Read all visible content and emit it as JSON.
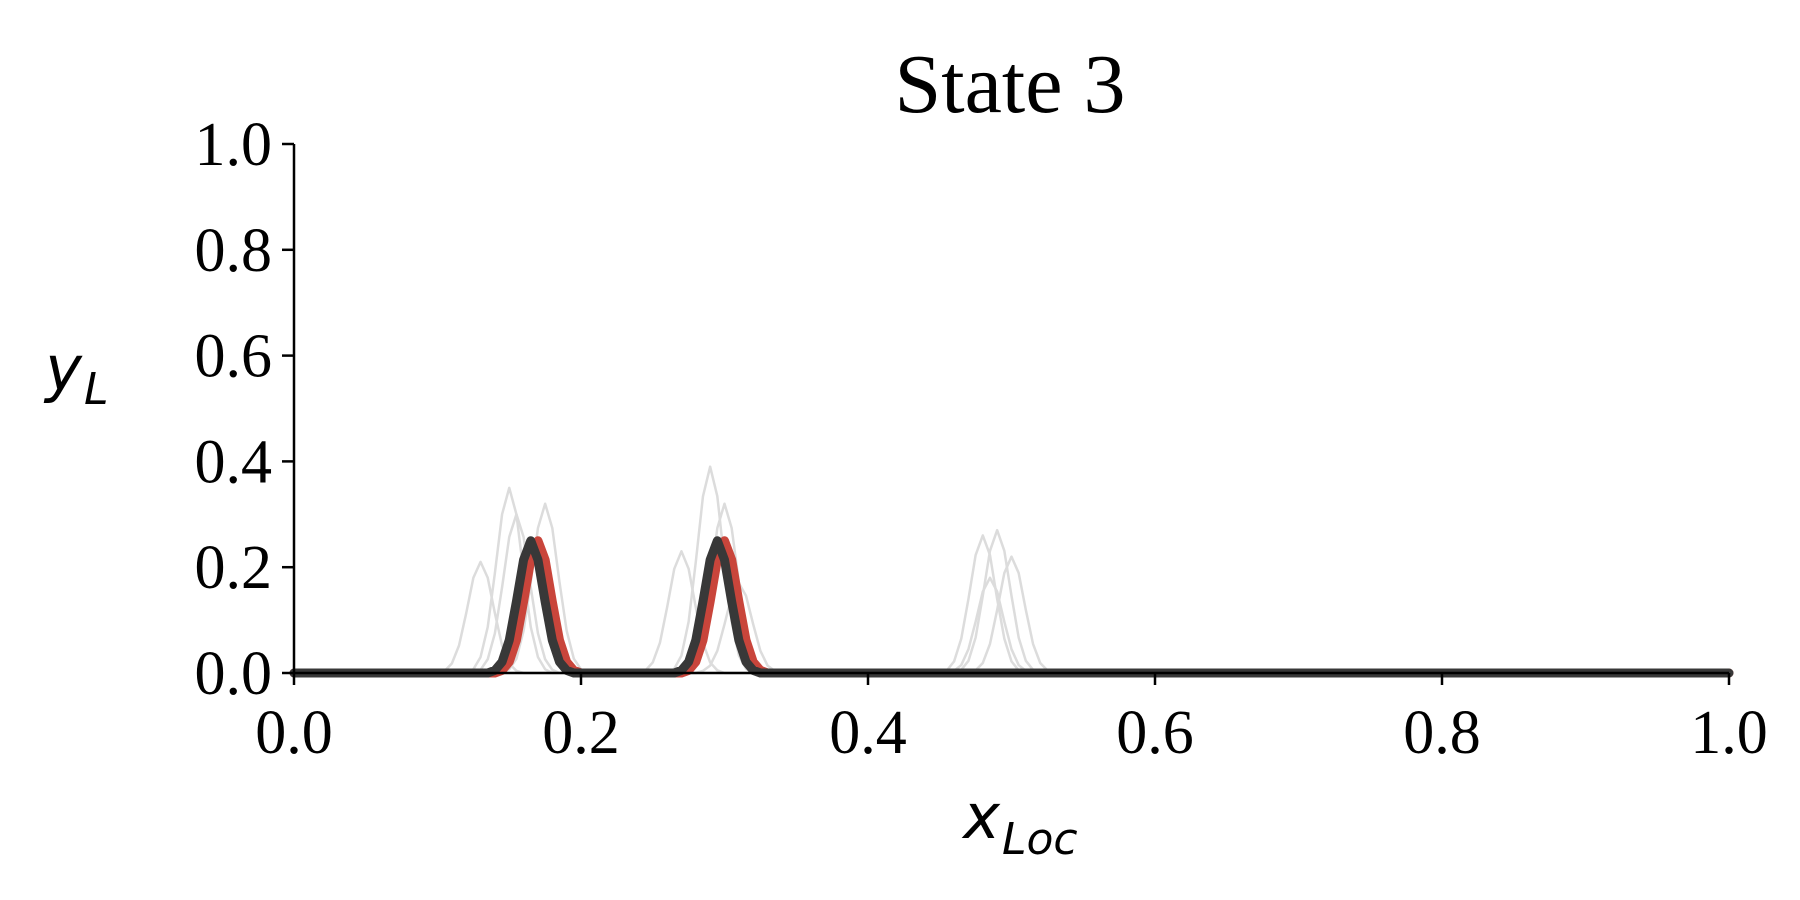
{
  "chart_data": {
    "type": "line",
    "title": "State 3",
    "xlabel": [
      "x",
      "Loc"
    ],
    "ylabel": [
      "y",
      "L"
    ],
    "xlim": [
      0,
      1
    ],
    "ylim": [
      0,
      1
    ],
    "xticks": [
      {
        "value": 0,
        "label": "0.0"
      },
      0.2,
      0.4,
      0.6,
      0.8,
      {
        "value": 1,
        "label": "1.0"
      }
    ],
    "yticks": [
      {
        "value": 0,
        "label": "0.0"
      },
      0.2,
      0.4,
      0.6,
      0.8,
      {
        "value": 1,
        "label": "1.0"
      }
    ],
    "grid": false,
    "x": [
      0,
      0.1,
      0.105,
      0.11,
      0.115,
      0.12,
      0.125,
      0.13,
      0.135,
      0.14,
      0.145,
      0.15,
      0.155,
      0.16,
      0.165,
      0.17,
      0.175,
      0.18,
      0.185,
      0.19,
      0.195,
      0.2,
      0.205,
      0.21,
      0.24,
      0.245,
      0.25,
      0.255,
      0.26,
      0.265,
      0.27,
      0.275,
      0.28,
      0.285,
      0.29,
      0.295,
      0.3,
      0.305,
      0.31,
      0.315,
      0.32,
      0.325,
      0.33,
      0.335,
      0.34,
      0.45,
      0.455,
      0.46,
      0.465,
      0.47,
      0.475,
      0.48,
      0.485,
      0.49,
      0.495,
      0.5,
      0.505,
      0.51,
      0.515,
      0.52,
      0.525,
      0.53,
      1
    ],
    "series": [
      {
        "color": "#dcdcdc",
        "linewidth": 2.5,
        "values": [
          0,
          0,
          0.004,
          0.018,
          0.052,
          0.113,
          0.18,
          0.21,
          0.18,
          0.113,
          0.052,
          0.018,
          0.004,
          0,
          0,
          0,
          0,
          0,
          0,
          0,
          0,
          0,
          0,
          0,
          0,
          0.005,
          0.02,
          0.057,
          0.124,
          0.197,
          0.23,
          0.197,
          0.124,
          0.057,
          0.02,
          0.005,
          0,
          0,
          0,
          0,
          0,
          0,
          0,
          0,
          0,
          0,
          0.005,
          0.022,
          0.065,
          0.14,
          0.223,
          0.26,
          0.223,
          0.14,
          0.065,
          0.022,
          0.005,
          0,
          0,
          0,
          0,
          0,
          0
        ]
      },
      {
        "color": "#dcdcdc",
        "linewidth": 2.5,
        "values": [
          0,
          0,
          0,
          0,
          0,
          0,
          0.007,
          0.03,
          0.087,
          0.189,
          0.3,
          0.35,
          0.3,
          0.189,
          0.087,
          0.03,
          0.007,
          0,
          0,
          0,
          0,
          0,
          0,
          0,
          0,
          0,
          0,
          0,
          0,
          0.008,
          0.033,
          0.097,
          0.21,
          0.334,
          0.39,
          0.334,
          0.21,
          0.097,
          0.033,
          0.008,
          0,
          0,
          0,
          0,
          0,
          0,
          0,
          0,
          0.006,
          0.023,
          0.067,
          0.146,
          0.231,
          0.27,
          0.231,
          0.146,
          0.067,
          0.023,
          0.006,
          0,
          0,
          0,
          0
        ]
      },
      {
        "color": "#dcdcdc",
        "linewidth": 2.5,
        "values": [
          0,
          0,
          0,
          0,
          0,
          0,
          0,
          0,
          0,
          0,
          0,
          0.007,
          0.027,
          0.08,
          0.172,
          0.274,
          0.32,
          0.274,
          0.172,
          0.08,
          0.027,
          0.007,
          0,
          0,
          0,
          0,
          0,
          0,
          0,
          0,
          0,
          0.007,
          0.027,
          0.08,
          0.172,
          0.274,
          0.32,
          0.274,
          0.172,
          0.08,
          0.027,
          0.007,
          0,
          0,
          0,
          0,
          0,
          0,
          0,
          0,
          0.005,
          0.019,
          0.055,
          0.119,
          0.189,
          0.22,
          0.189,
          0.119,
          0.055,
          0.019,
          0.005,
          0,
          0
        ]
      },
      {
        "color": "#dcdcdc",
        "linewidth": 2.5,
        "values": [
          0,
          0,
          0,
          0,
          0,
          0,
          0,
          0.006,
          0.026,
          0.075,
          0.162,
          0.257,
          0.3,
          0.257,
          0.162,
          0.075,
          0.026,
          0.006,
          0,
          0,
          0,
          0,
          0,
          0,
          0,
          0,
          0,
          0,
          0,
          0,
          0,
          0,
          0,
          0.004,
          0.014,
          0.042,
          0.092,
          0.146,
          0.17,
          0.146,
          0.092,
          0.042,
          0.014,
          0.004,
          0,
          0,
          0,
          0.004,
          0.015,
          0.045,
          0.097,
          0.154,
          0.18,
          0.154,
          0.097,
          0.045,
          0.015,
          0.004,
          0,
          0,
          0,
          0,
          0
        ]
      },
      {
        "color": "#c9453b",
        "linewidth": 9,
        "values": [
          0,
          0,
          0,
          0,
          0,
          0,
          0,
          0,
          0,
          0,
          0.005,
          0.021,
          0.062,
          0.135,
          0.214,
          0.25,
          0.214,
          0.135,
          0.062,
          0.021,
          0.005,
          0,
          0,
          0,
          0,
          0,
          0,
          0,
          0,
          0,
          0,
          0.005,
          0.021,
          0.062,
          0.135,
          0.214,
          0.25,
          0.214,
          0.135,
          0.062,
          0.021,
          0.005,
          0,
          0,
          0,
          0,
          0,
          0,
          0,
          0,
          0,
          0,
          0,
          0,
          0,
          0,
          0,
          0,
          0,
          0,
          0,
          0,
          0
        ]
      },
      {
        "color": "#383838",
        "linewidth": 9,
        "values": [
          0,
          0,
          0,
          0,
          0,
          0,
          0,
          0,
          0,
          0.005,
          0.021,
          0.062,
          0.135,
          0.214,
          0.25,
          0.214,
          0.135,
          0.062,
          0.021,
          0.005,
          0,
          0,
          0,
          0,
          0,
          0,
          0,
          0,
          0,
          0,
          0.005,
          0.021,
          0.062,
          0.135,
          0.214,
          0.25,
          0.214,
          0.135,
          0.062,
          0.021,
          0.005,
          0,
          0,
          0,
          0,
          0,
          0,
          0,
          0,
          0,
          0,
          0,
          0,
          0,
          0,
          0,
          0,
          0,
          0,
          0,
          0,
          0,
          0
        ]
      }
    ]
  }
}
